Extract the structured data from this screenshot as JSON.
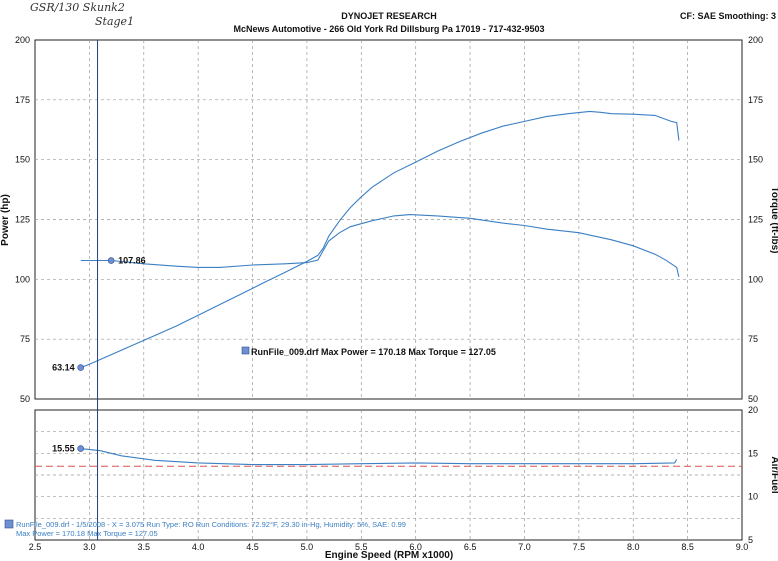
{
  "handwritten": {
    "line1": "GSR/130 Skunk2",
    "line2": "Stage1"
  },
  "header": {
    "title": "DYNOJET RESEARCH",
    "shop": "McNews Automotive - 266 Old York Rd Dillsburg Pa 17019 - 717-432-9503",
    "settings": "CF: SAE  Smoothing: 3"
  },
  "legend": {
    "run_summary": "RunFile_009.drf Max Power = 170.18     Max Torque = 127.05"
  },
  "footer": {
    "line1": "RunFile_009.drf - 1/5/2008 - X = 3.075  Run Type: RO  Run Conditions: 72.92°F, 29.30 in-Hg,  Humidity:  5%,  SAE: 0.99",
    "line2": "Max Power = 170.18  Max Torque = 127.05"
  },
  "colors": {
    "curve": "#3b7fc4",
    "afr_target": "#d9534f",
    "grid": "#9a9a9a",
    "cursor": "#1f3f7a"
  },
  "chart_data": [
    {
      "type": "line",
      "xlabel": "Engine Speed (RPM x1000)",
      "ylabel": "Power (hp)",
      "y2label": "Torque (ft-lbs)",
      "xlim": [
        2.5,
        9.0
      ],
      "ylim": [
        50,
        200
      ],
      "y2lim": [
        50,
        200
      ],
      "xticks": [
        "2.5",
        "3.0",
        "3.5",
        "4.0",
        "4.5",
        "5.0",
        "5.5",
        "6.0",
        "6.5",
        "7.0",
        "7.5",
        "8.0",
        "8.5",
        "9.0"
      ],
      "yticks": [
        "50",
        "75",
        "100",
        "125",
        "150",
        "175",
        "200"
      ],
      "grid": true,
      "cursor_x": 3.075,
      "series": [
        {
          "name": "Power",
          "x": [
            2.92,
            3.0,
            3.2,
            3.4,
            3.6,
            3.8,
            4.0,
            4.2,
            4.4,
            4.6,
            4.8,
            5.0,
            5.1,
            5.15,
            5.2,
            5.3,
            5.4,
            5.5,
            5.6,
            5.8,
            6.0,
            6.2,
            6.4,
            6.6,
            6.8,
            7.0,
            7.2,
            7.4,
            7.6,
            7.7,
            7.8,
            8.0,
            8.2,
            8.35,
            8.4,
            8.42
          ],
          "values": [
            63.14,
            64.5,
            68.5,
            72.5,
            76.5,
            80.5,
            85,
            89.5,
            94,
            98.5,
            103,
            107.5,
            110,
            113,
            118,
            124.5,
            130,
            134.5,
            138.5,
            144.5,
            149,
            153.5,
            157.5,
            161,
            164,
            166,
            168,
            169.2,
            170.18,
            169.8,
            169.2,
            169,
            168.5,
            166,
            165.5,
            158
          ]
        },
        {
          "name": "Torque",
          "x": [
            2.92,
            3.2,
            3.5,
            3.8,
            4.0,
            4.2,
            4.5,
            4.8,
            5.0,
            5.1,
            5.15,
            5.2,
            5.3,
            5.4,
            5.6,
            5.8,
            5.95,
            6.2,
            6.5,
            6.8,
            7.0,
            7.2,
            7.5,
            7.8,
            8.0,
            8.2,
            8.3,
            8.4,
            8.42
          ],
          "values": [
            107.86,
            107.86,
            106.5,
            105.5,
            105,
            105,
            106,
            106.5,
            107,
            108,
            112,
            116,
            119.5,
            122,
            124.5,
            126.5,
            127.05,
            126.5,
            125.5,
            123.5,
            122.5,
            121,
            119.5,
            116.5,
            114,
            110.5,
            108,
            105,
            101
          ]
        },
        {
          "name": "Air/Fuel",
          "axis": "afr",
          "ylim": [
            5,
            20
          ],
          "yticks": [
            "5",
            "10",
            "15",
            "20"
          ],
          "ylabel": "Air/Fuel",
          "x": [
            2.92,
            3.1,
            3.3,
            3.6,
            4.0,
            4.5,
            5.0,
            5.5,
            6.0,
            6.5,
            7.0,
            7.5,
            8.0,
            8.38,
            8.4
          ],
          "values": [
            15.55,
            15.3,
            14.7,
            14.2,
            13.9,
            13.7,
            13.7,
            13.8,
            13.9,
            13.8,
            13.8,
            13.8,
            13.8,
            13.9,
            14.3
          ]
        },
        {
          "name": "AFR Target",
          "axis": "afr",
          "x": [
            2.5,
            9.0
          ],
          "values": [
            13.5,
            13.5
          ]
        }
      ],
      "data_labels": [
        {
          "text": "107.86",
          "x": 3.2,
          "y": 107.86,
          "series": "Torque"
        },
        {
          "text": "63.14",
          "x": 2.92,
          "y": 63.14,
          "series": "Power"
        },
        {
          "text": "15.55",
          "x": 2.92,
          "y": 15.55,
          "series": "Air/Fuel"
        }
      ]
    }
  ]
}
